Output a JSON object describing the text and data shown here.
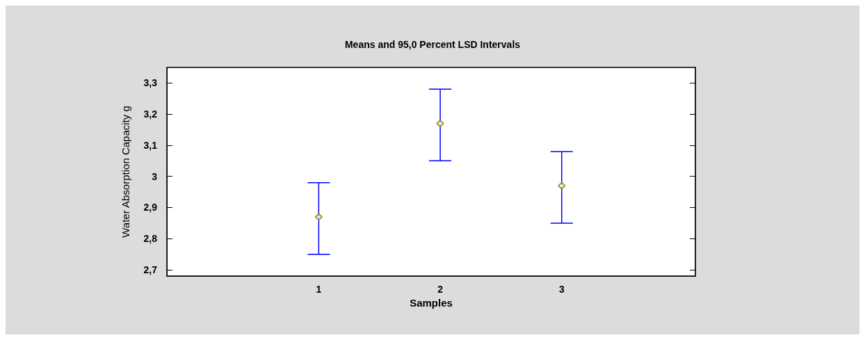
{
  "chart_data": {
    "type": "scatter",
    "title": "Means and 95,0 Percent LSD Intervals",
    "xlabel": "Samples",
    "ylabel": "Water Absorption Capacity g",
    "x": [
      1,
      2,
      3
    ],
    "series": [
      {
        "color": "#808000",
        "values": [
          2.87,
          3.17,
          2.97
        ],
        "errors": [
          [
            2.75,
            2.98
          ],
          [
            3.05,
            3.28
          ],
          [
            2.85,
            3.08
          ]
        ]
      }
    ],
    "xlim": [
      -0.25,
      4.1
    ],
    "xticks": [
      1,
      2,
      3
    ],
    "ylim": [
      2.68,
      3.35
    ],
    "yticks": [
      {
        "value": 2.7,
        "label": "2,7"
      },
      {
        "value": 2.8,
        "label": "2,8"
      },
      {
        "value": 2.9,
        "label": "2,9"
      },
      {
        "value": 3,
        "label": "3"
      },
      {
        "value": 3.1,
        "label": "3,1"
      },
      {
        "value": 3.2,
        "label": "3,2"
      },
      {
        "value": 3.3,
        "label": "3,3"
      }
    ],
    "marker": "diamond",
    "grid": false
  }
}
